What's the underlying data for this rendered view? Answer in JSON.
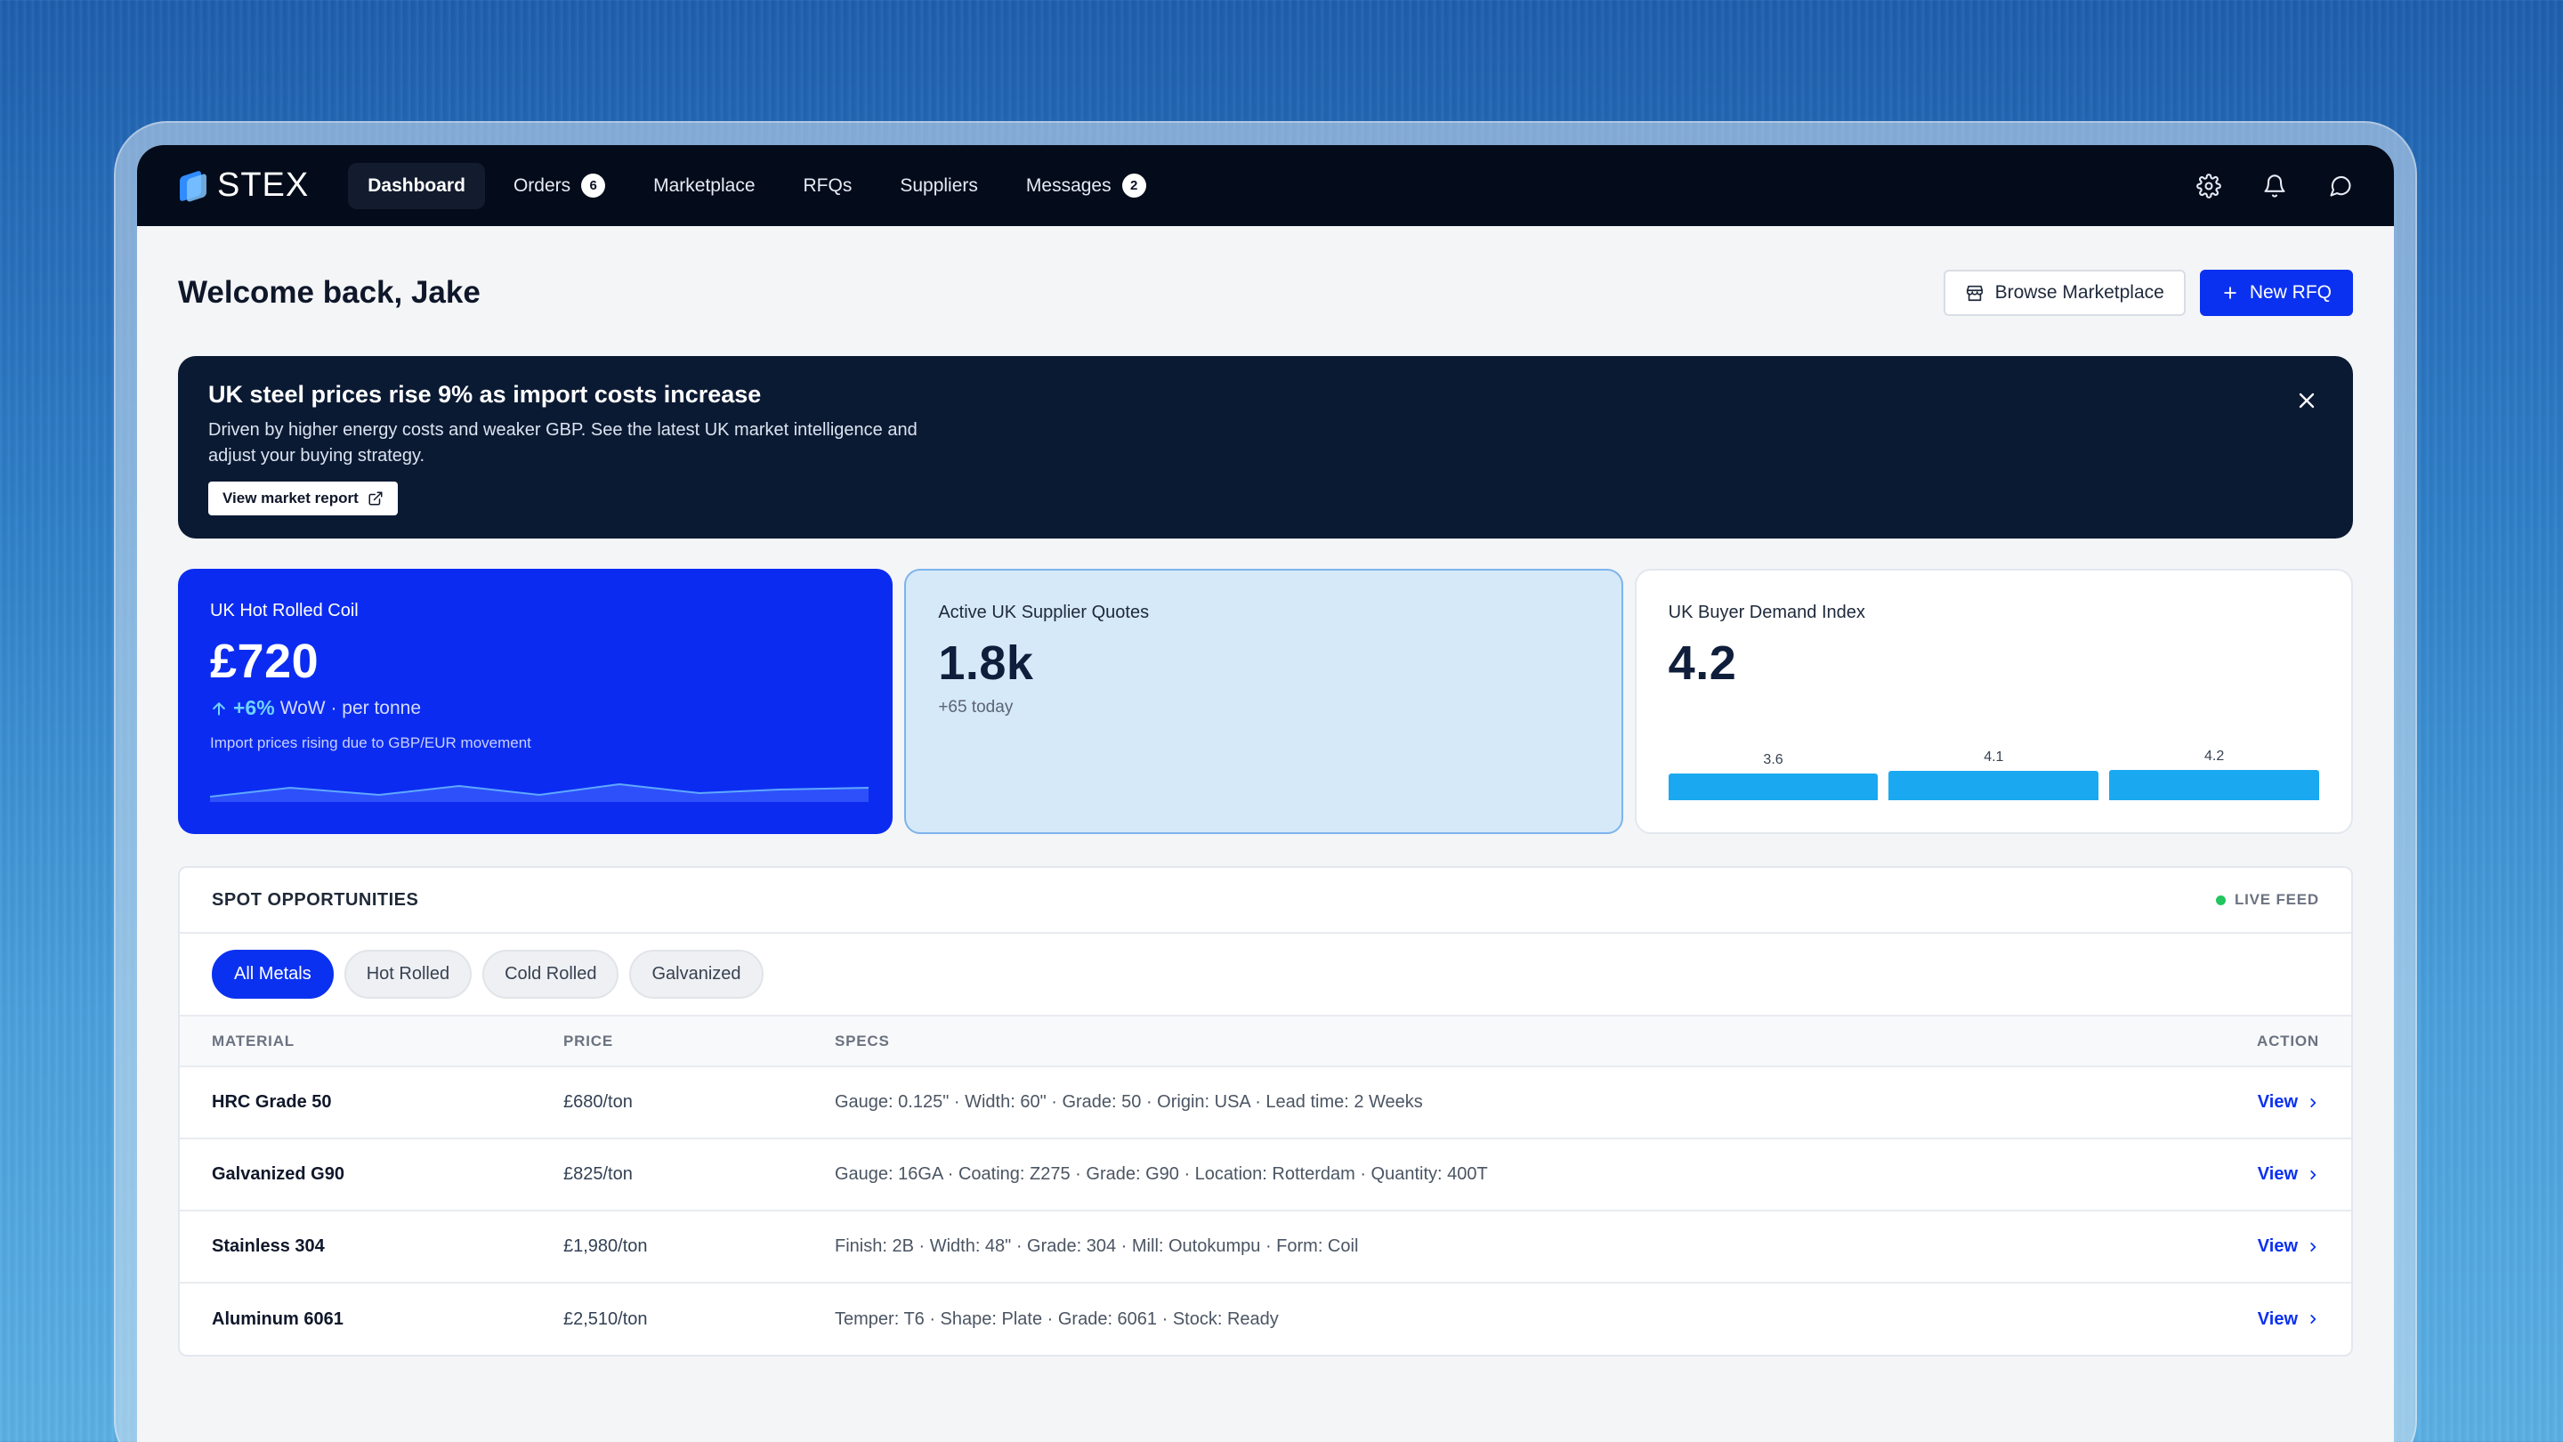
{
  "nav": {
    "logo": "STEX",
    "items": [
      {
        "label": "Dashboard",
        "badge": null,
        "active": true
      },
      {
        "label": "Orders",
        "badge": "6",
        "active": false
      },
      {
        "label": "Marketplace",
        "badge": null,
        "active": false
      },
      {
        "label": "RFQs",
        "badge": null,
        "active": false
      },
      {
        "label": "Suppliers",
        "badge": null,
        "active": false
      },
      {
        "label": "Messages",
        "badge": "2",
        "active": false
      }
    ],
    "icons": [
      "gear-icon",
      "bell-icon",
      "chat-icon"
    ]
  },
  "header": {
    "title": "Welcome back, Jake",
    "browse_label": "Browse Marketplace",
    "new_rfq_label": "New RFQ"
  },
  "banner": {
    "title": "UK steel prices rise 9% as import costs increase",
    "text": "Driven by higher energy costs and weaker GBP. See the latest UK market intelligence and adjust your buying strategy.",
    "link_label": "View market report"
  },
  "cards": {
    "hrc": {
      "label": "UK Hot Rolled Coil",
      "value": "£720",
      "change_pct": "+6%",
      "change_rest": "WoW · per tonne",
      "note": "Import prices rising due to GBP/EUR movement"
    },
    "quotes": {
      "label": "Active UK Supplier Quotes",
      "value": "1.8k",
      "sub": "+65 today"
    },
    "demand": {
      "label": "UK Buyer Demand Index",
      "value": "4.2",
      "bars": [
        {
          "label": "3.6",
          "value": 3.6
        },
        {
          "label": "4.1",
          "value": 4.1
        },
        {
          "label": "4.2",
          "value": 4.2
        }
      ]
    }
  },
  "spot": {
    "title": "SPOT OPPORTUNITIES",
    "live_label": "LIVE FEED",
    "filters": [
      "All Metals",
      "Hot Rolled",
      "Cold Rolled",
      "Galvanized"
    ],
    "columns": [
      "MATERIAL",
      "PRICE",
      "SPECS",
      "ACTION"
    ],
    "rows": [
      {
        "material": "HRC Grade 50",
        "price": "£680/ton",
        "specs": "Gauge: 0.125\" · Width: 60\" · Grade: 50 · Origin: USA · Lead time: 2 Weeks",
        "action": "View"
      },
      {
        "material": "Galvanized G90",
        "price": "£825/ton",
        "specs": "Gauge: 16GA · Coating: Z275 · Grade: G90 · Location: Rotterdam · Quantity: 400T",
        "action": "View"
      },
      {
        "material": "Stainless 304",
        "price": "£1,980/ton",
        "specs": "Finish: 2B · Width: 48\" · Grade: 304 · Mill: Outokumpu · Form: Coil",
        "action": "View"
      },
      {
        "material": "Aluminum 6061",
        "price": "£2,510/ton",
        "specs": "Temper: T6 · Shape: Plate · Grade: 6061 · Stock: Ready",
        "action": "View"
      }
    ]
  },
  "colors": {
    "nav_bg": "#040b1a",
    "accent": "#0b31f0",
    "banner_bg": "#0b1a33",
    "live": "#22c55e",
    "bar": "#1aa9f0"
  }
}
